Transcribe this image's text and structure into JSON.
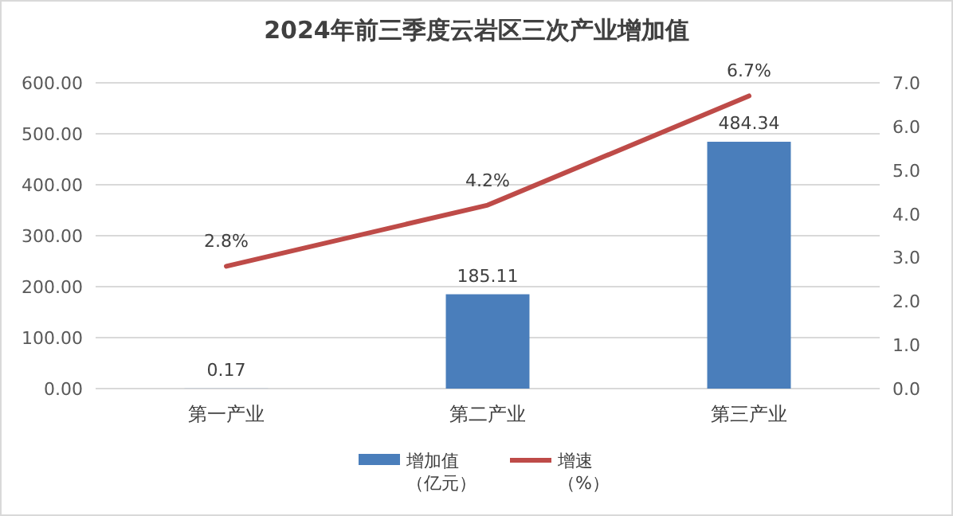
{
  "chart_data": {
    "type": "bar",
    "title": "2024年前三季度云岩区三次产业增加值",
    "categories": [
      "第一产业",
      "第二产业",
      "第三产业"
    ],
    "series": [
      {
        "name": "增加值（亿元）",
        "color": "#4a7ebb",
        "values": [
          0.17,
          185.11,
          484.34
        ],
        "value_labels": [
          "0.17",
          "185.11",
          "484.34"
        ]
      },
      {
        "name": "增速（%）",
        "type": "line",
        "axis": "y2",
        "color": "#be4b48",
        "values": [
          2.8,
          4.2,
          6.7
        ],
        "value_labels": [
          "2.8%",
          "4.2%",
          "6.7%"
        ]
      }
    ],
    "ylim": [
      0,
      600
    ],
    "yticks": [
      {
        "value": 0,
        "label": "0.00"
      },
      {
        "value": 100,
        "label": "100.00"
      },
      {
        "value": 200,
        "label": "200.00"
      },
      {
        "value": 300,
        "label": "300.00"
      },
      {
        "value": 400,
        "label": "400.00"
      },
      {
        "value": 500,
        "label": "500.00"
      },
      {
        "value": 600,
        "label": "600.00"
      }
    ],
    "y2lim": [
      0,
      7
    ],
    "y2ticks": [
      {
        "value": 0,
        "label": "0.0"
      },
      {
        "value": 1,
        "label": "1.0"
      },
      {
        "value": 2,
        "label": "2.0"
      },
      {
        "value": 3,
        "label": "3.0"
      },
      {
        "value": 4,
        "label": "4.0"
      },
      {
        "value": 5,
        "label": "5.0"
      },
      {
        "value": 6,
        "label": "6.0"
      },
      {
        "value": 7,
        "label": "7.0"
      }
    ],
    "grid": "y",
    "legend": "bottom"
  }
}
